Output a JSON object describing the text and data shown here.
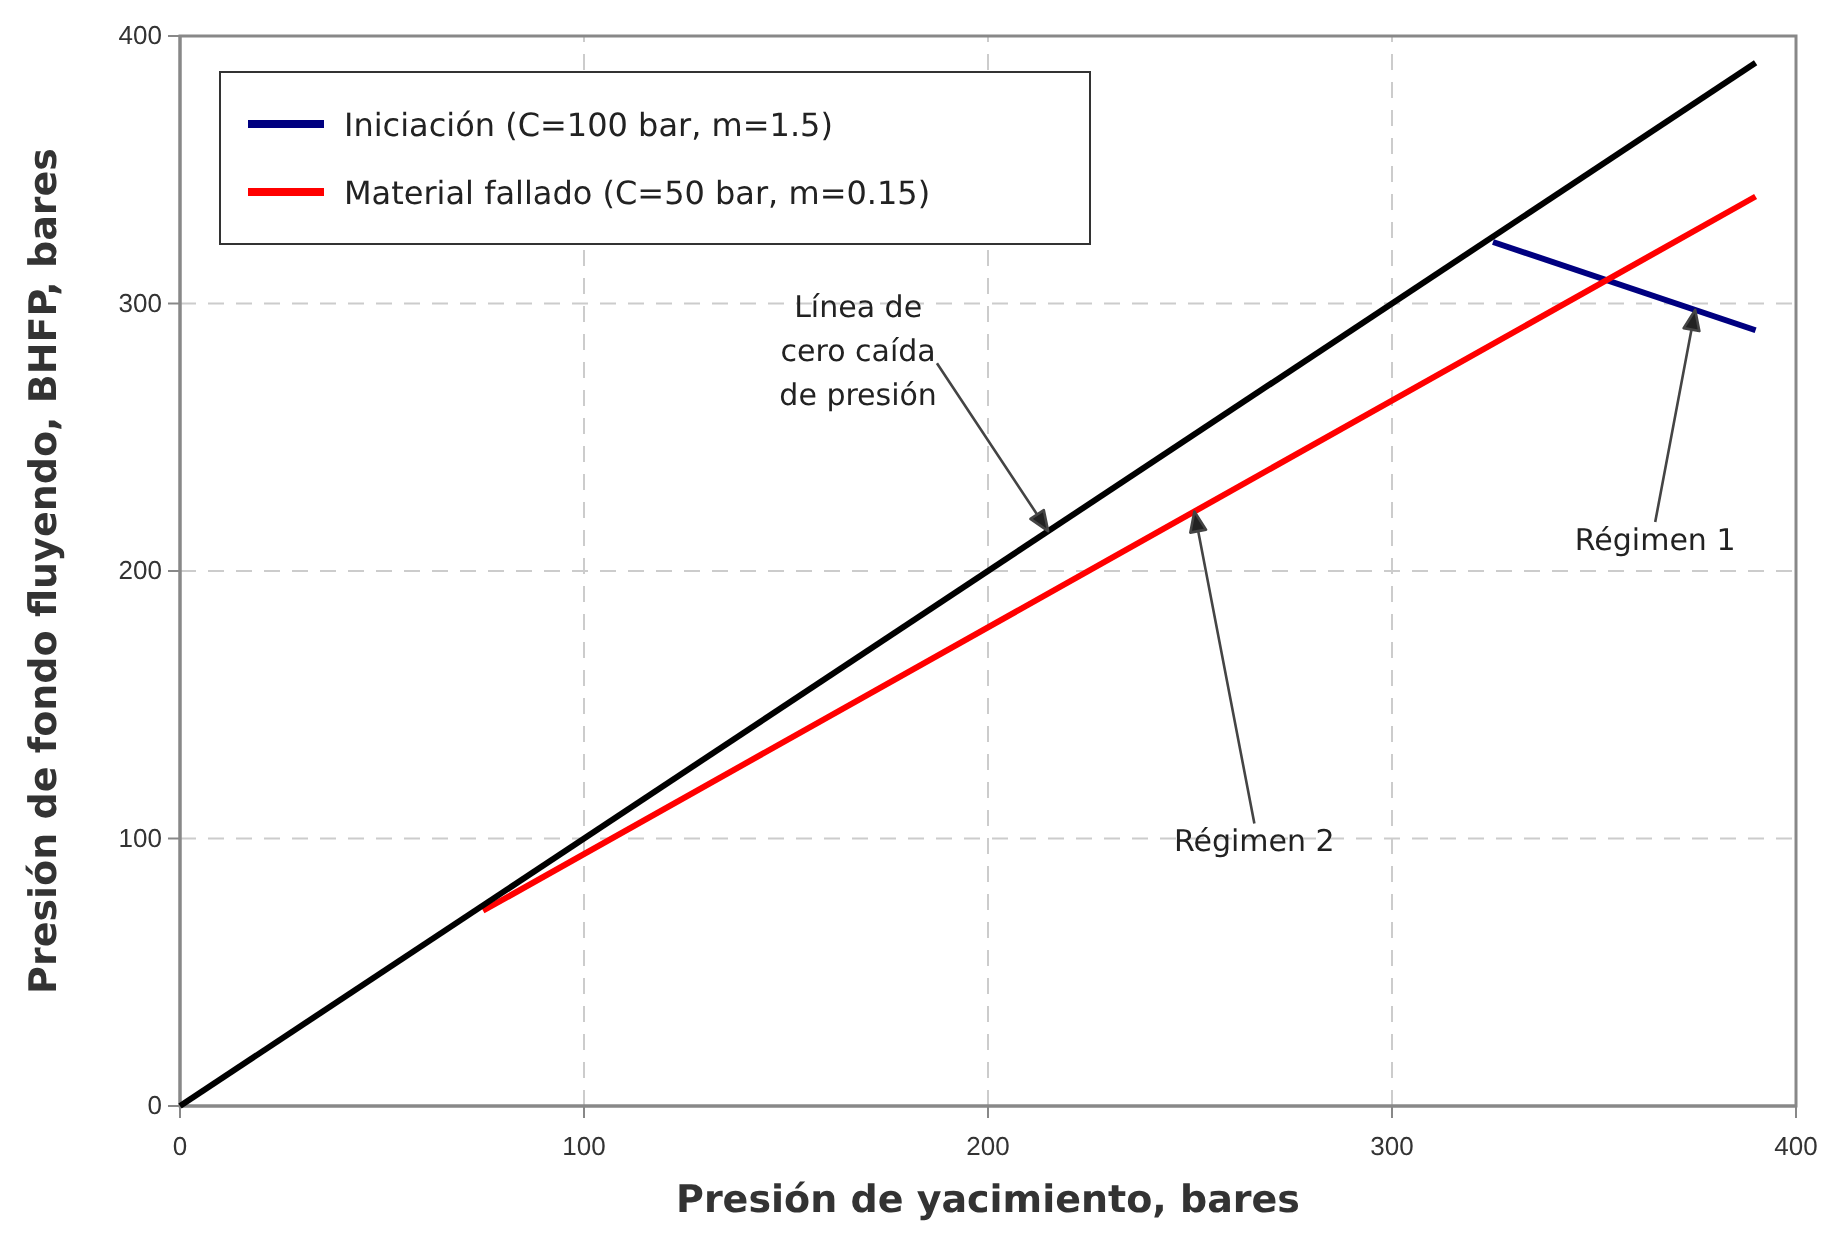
{
  "chart_data": {
    "type": "line",
    "xlabel": "Presión de yacimiento, bares",
    "ylabel": "Presión de fondo fluyendo, BHFP, bares",
    "xlim": [
      0,
      400
    ],
    "ylim": [
      0,
      400
    ],
    "xticks": [
      0,
      100,
      200,
      300,
      400
    ],
    "yticks": [
      0,
      100,
      200,
      300,
      400
    ],
    "grid": true,
    "legend": "top left",
    "line_style": "solid",
    "marker": "none",
    "series": [
      {
        "name": "Iniciación (C=100 bar, m=1.5)",
        "color": "#000080",
        "x": [
          325,
          390
        ],
        "values": [
          323,
          290
        ]
      },
      {
        "name": "Material fallado (C=50 bar, m=0.15)",
        "color": "#ff0000",
        "x": [
          75,
          390
        ],
        "values": [
          73,
          340
        ]
      },
      {
        "color": "#000000",
        "x": [
          0,
          390
        ],
        "values": [
          0,
          390
        ]
      }
    ],
    "annotations": [
      "Línea de\ncero caída\nde presión",
      "Régimen 2",
      "Régimen 1"
    ]
  }
}
